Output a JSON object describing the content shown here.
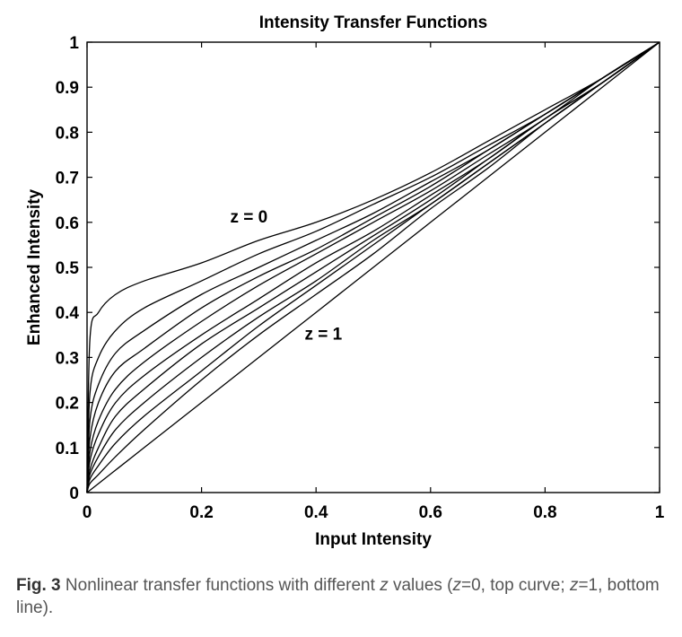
{
  "chart_data": {
    "type": "line",
    "title": "Intensity Transfer Functions",
    "xlabel": "Input Intensity",
    "ylabel": "Enhanced Intensity",
    "xlim": [
      0,
      1
    ],
    "ylim": [
      0,
      1
    ],
    "xticks": [
      0,
      0.2,
      0.4,
      0.6,
      0.8,
      1
    ],
    "xtick_labels": [
      "0",
      "0.2",
      "0.4",
      "0.6",
      "0.8",
      "1"
    ],
    "yticks": [
      0,
      0.1,
      0.2,
      0.3,
      0.4,
      0.5,
      0.6,
      0.7,
      0.8,
      0.9,
      1
    ],
    "ytick_labels": [
      "0",
      "0.1",
      "0.2",
      "0.3",
      "0.4",
      "0.5",
      "0.6",
      "0.7",
      "0.8",
      "0.9",
      "1"
    ],
    "grid": false,
    "line_color": "#000000",
    "annotations": [
      {
        "text": "z = 0",
        "x": 0.25,
        "y": 0.6
      },
      {
        "text": "z = 1",
        "x": 0.38,
        "y": 0.34
      }
    ],
    "x": [
      0,
      0.005,
      0.02,
      0.05,
      0.1,
      0.2,
      0.3,
      0.4,
      0.5,
      0.6,
      0.7,
      0.8,
      0.9,
      1
    ],
    "series": [
      {
        "values": [
          0,
          0.34,
          0.4,
          0.44,
          0.47,
          0.51,
          0.56,
          0.6,
          0.65,
          0.71,
          0.78,
          0.85,
          0.92,
          1
        ]
      },
      {
        "values": [
          0,
          0.22,
          0.3,
          0.36,
          0.41,
          0.47,
          0.53,
          0.58,
          0.64,
          0.7,
          0.77,
          0.84,
          0.92,
          1
        ]
      },
      {
        "values": [
          0,
          0.16,
          0.24,
          0.31,
          0.36,
          0.44,
          0.5,
          0.56,
          0.62,
          0.69,
          0.76,
          0.84,
          0.92,
          1
        ]
      },
      {
        "values": [
          0,
          0.12,
          0.2,
          0.27,
          0.32,
          0.41,
          0.48,
          0.54,
          0.61,
          0.68,
          0.76,
          0.84,
          0.92,
          1
        ]
      },
      {
        "values": [
          0,
          0.09,
          0.16,
          0.23,
          0.29,
          0.38,
          0.46,
          0.53,
          0.6,
          0.67,
          0.75,
          0.83,
          0.92,
          1
        ]
      },
      {
        "values": [
          0,
          0.07,
          0.13,
          0.2,
          0.26,
          0.35,
          0.43,
          0.51,
          0.58,
          0.66,
          0.74,
          0.83,
          0.91,
          1
        ]
      },
      {
        "values": [
          0,
          0.05,
          0.1,
          0.17,
          0.23,
          0.33,
          0.41,
          0.49,
          0.57,
          0.65,
          0.74,
          0.83,
          0.91,
          1
        ]
      },
      {
        "values": [
          0,
          0.04,
          0.08,
          0.14,
          0.2,
          0.3,
          0.39,
          0.47,
          0.56,
          0.64,
          0.73,
          0.82,
          0.91,
          1
        ]
      },
      {
        "values": [
          0,
          0.03,
          0.06,
          0.11,
          0.17,
          0.27,
          0.37,
          0.46,
          0.55,
          0.64,
          0.73,
          0.82,
          0.91,
          1
        ]
      },
      {
        "values": [
          0,
          0.02,
          0.04,
          0.08,
          0.14,
          0.25,
          0.35,
          0.44,
          0.53,
          0.63,
          0.72,
          0.82,
          0.91,
          1
        ]
      },
      {
        "values": [
          0,
          0.005,
          0.02,
          0.05,
          0.1,
          0.2,
          0.3,
          0.4,
          0.5,
          0.6,
          0.7,
          0.8,
          0.9,
          1
        ]
      }
    ]
  },
  "caption": {
    "fig_label": "Fig. 3",
    "text_1": " Nonlinear transfer functions with different ",
    "z_var": "z",
    "text_2": " values (",
    "z_eq_0": "z",
    "text_3": "=0, top curve; ",
    "z_eq_1": "z",
    "text_4": "=1, bottom line)."
  }
}
